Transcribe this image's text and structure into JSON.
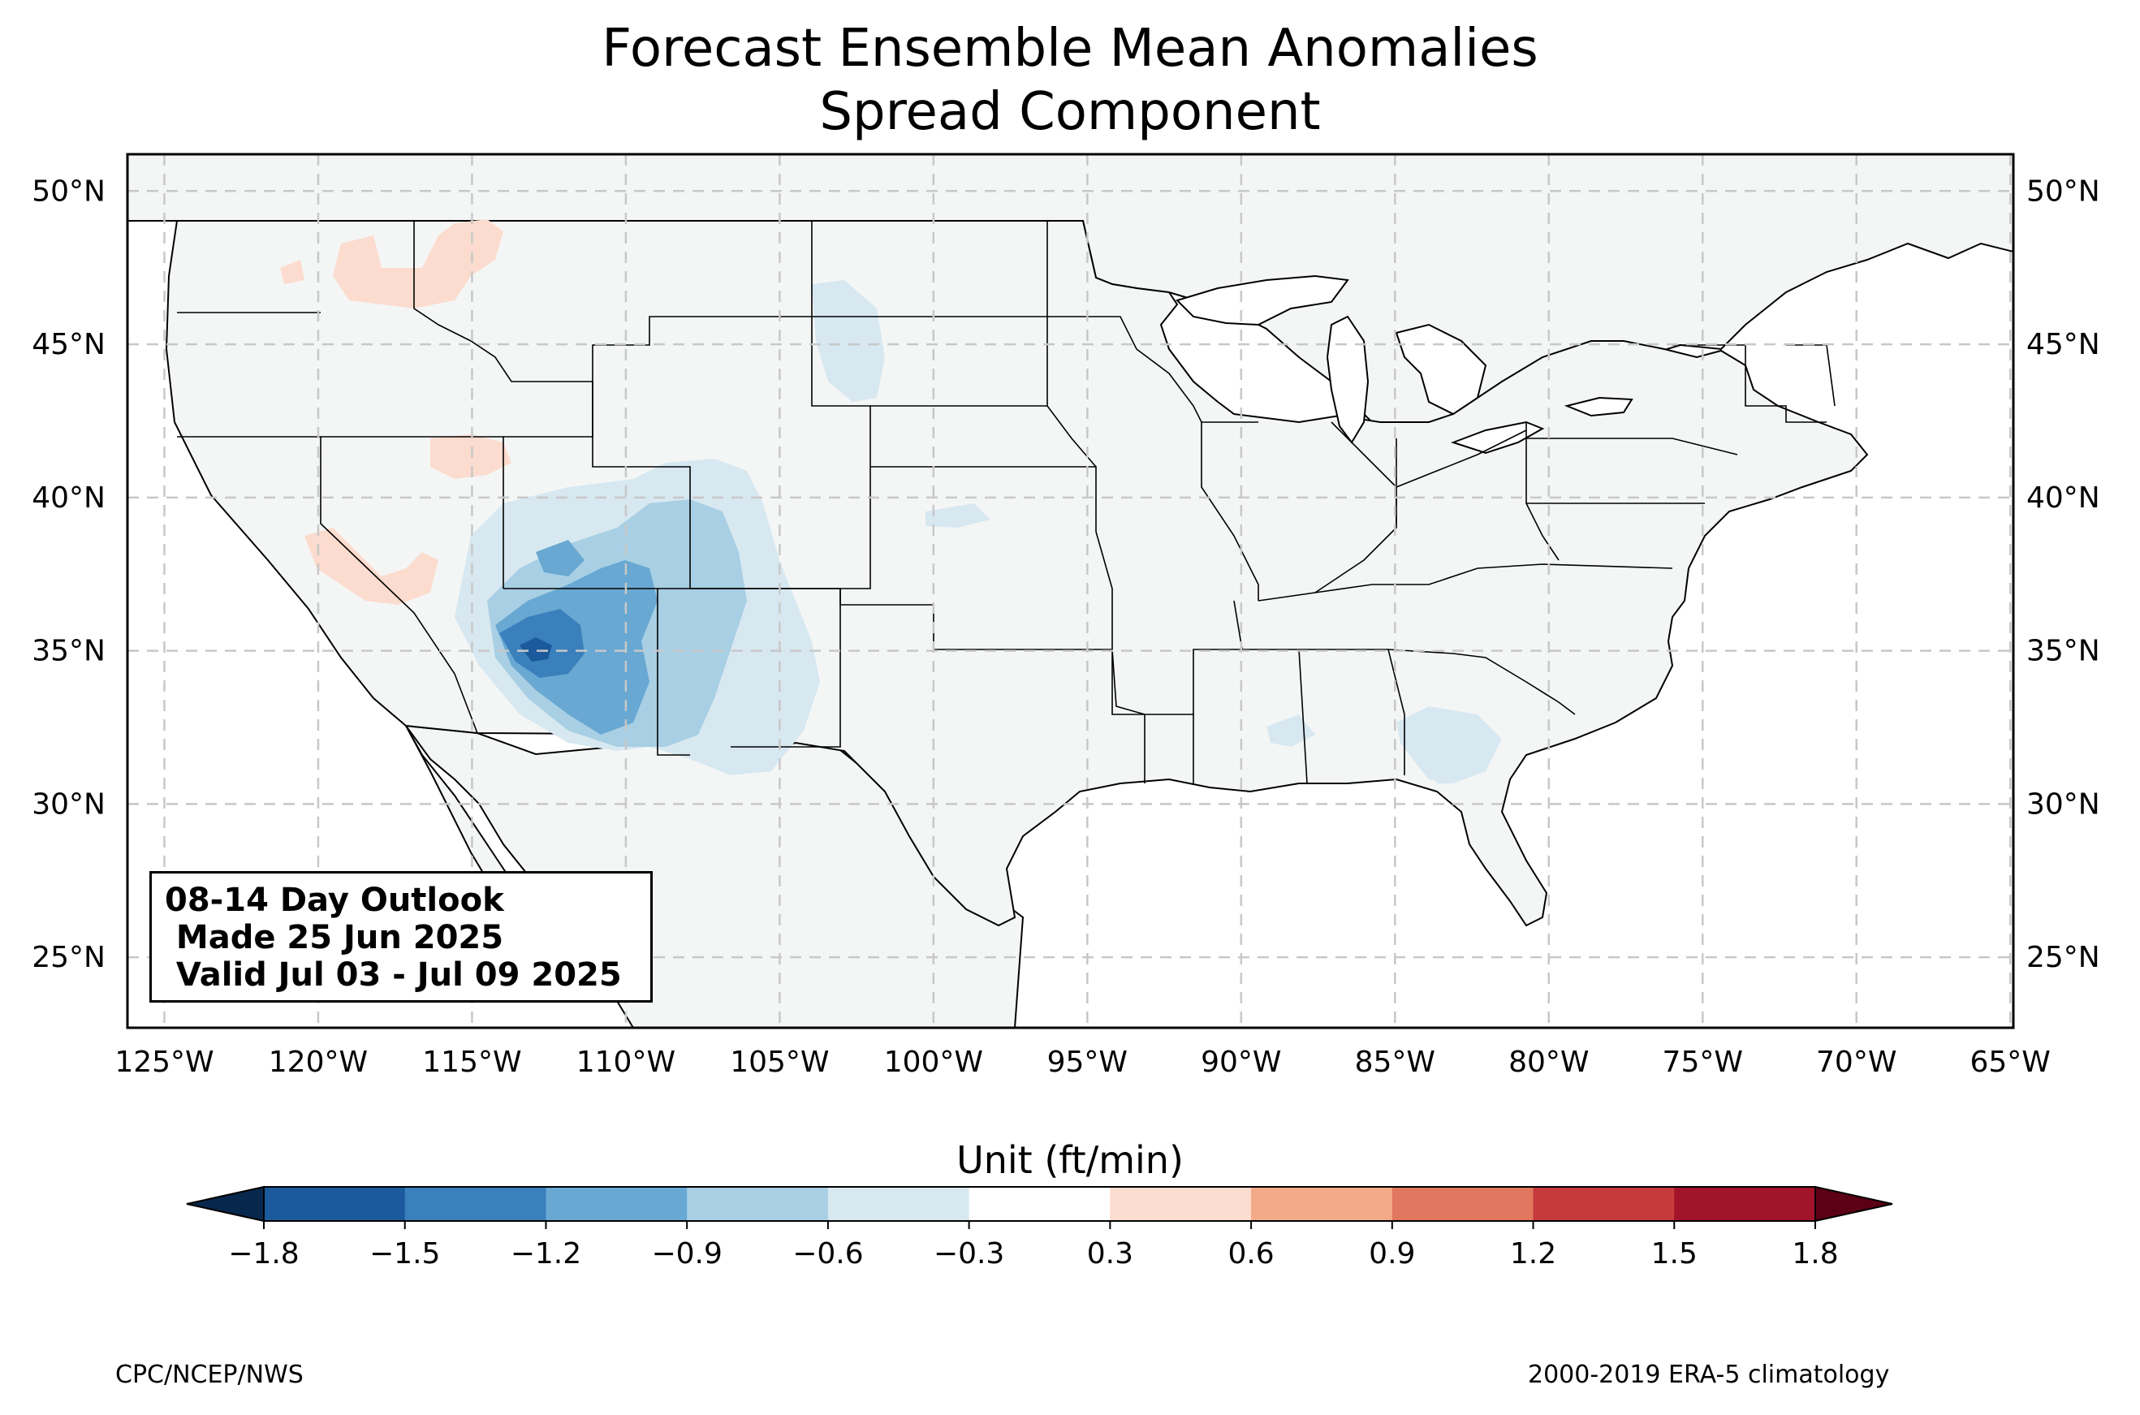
{
  "title": {
    "line1": "Forecast Ensemble Mean Anomalies",
    "line2": "Spread Component"
  },
  "map": {
    "lat_ticks": [
      "50°N",
      "45°N",
      "40°N",
      "35°N",
      "30°N",
      "25°N"
    ],
    "lon_ticks": [
      "125°W",
      "120°W",
      "115°W",
      "110°W",
      "105°W",
      "100°W",
      "95°W",
      "90°W",
      "85°W",
      "80°W",
      "75°W",
      "70°W",
      "65°W"
    ],
    "extent": {
      "lon": [
        -126.2,
        -64.9
      ],
      "lat": [
        22.7,
        51.2
      ]
    },
    "land_color": "#f4f6f6",
    "grid": "dashed"
  },
  "info_box": {
    "line1": "08-14 Day Outlook",
    "line2": " Made 25 Jun 2025",
    "line3": " Valid Jul 03 - Jul 09 2025"
  },
  "colorbar": {
    "label": "Unit (ft/min)",
    "ticks": [
      "−1.8",
      "−1.5",
      "−1.2",
      "−0.9",
      "−0.6",
      "−0.3",
      "0.3",
      "0.6",
      "0.9",
      "1.2",
      "1.5",
      "1.8"
    ],
    "colors": [
      "#1b5a9c",
      "#3a80bc",
      "#68a8d2",
      "#a8cfe4",
      "#d7e8f1",
      "#ffffff",
      "#fcdcce",
      "#f3aa88",
      "#e0775e",
      "#c6393d",
      "#a1142a"
    ],
    "under_color": "#08274d",
    "over_color": "#5c0016"
  },
  "footer": {
    "left": "CPC/NCEP/NWS",
    "right": "2000-2019 ERA-5 climatology"
  }
}
